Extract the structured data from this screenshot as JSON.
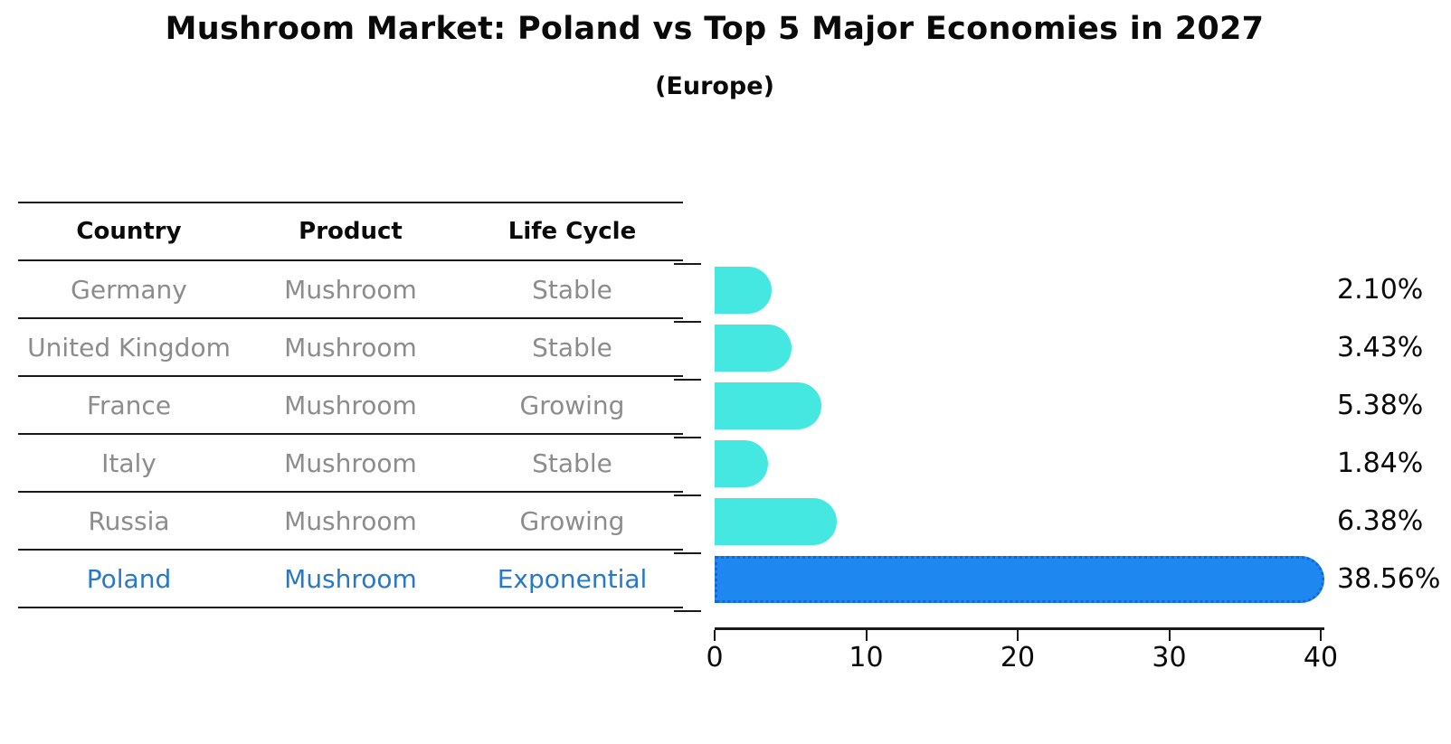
{
  "title": "Mushroom Market: Poland vs Top 5 Major Economies in 2027",
  "subtitle": "(Europe)",
  "table": {
    "headers": [
      "Country",
      "Product",
      "Life Cycle"
    ],
    "rows": [
      {
        "country": "Germany",
        "product": "Mushroom",
        "life_cycle": "Stable",
        "highlight": false
      },
      {
        "country": "United Kingdom",
        "product": "Mushroom",
        "life_cycle": "Stable",
        "highlight": false
      },
      {
        "country": "France",
        "product": "Mushroom",
        "life_cycle": "Growing",
        "highlight": false
      },
      {
        "country": "Italy",
        "product": "Mushroom",
        "life_cycle": "Stable",
        "highlight": false
      },
      {
        "country": "Russia",
        "product": "Mushroom",
        "life_cycle": "Growing",
        "highlight": false
      },
      {
        "country": "Poland",
        "product": "Mushroom",
        "life_cycle": "Exponential",
        "highlight": true
      }
    ]
  },
  "chart_data": {
    "type": "bar",
    "orientation": "horizontal",
    "title": "Mushroom Market: Poland vs Top 5 Major Economies in 2027",
    "subtitle": "(Europe)",
    "categories": [
      "Germany",
      "United Kingdom",
      "France",
      "Italy",
      "Russia",
      "Poland"
    ],
    "values": [
      2.1,
      3.43,
      5.38,
      1.84,
      6.38,
      38.56
    ],
    "value_labels": [
      "2.10%",
      "3.43%",
      "5.38%",
      "1.84%",
      "6.38%",
      "38.56%"
    ],
    "highlight_index": 5,
    "xlim": [
      0,
      40
    ],
    "x_ticks": [
      0,
      10,
      20,
      30,
      40
    ],
    "grid": false,
    "legend": "none",
    "bar_color": "#45e8e1",
    "highlight_bar_color": "#1e87f0",
    "highlight_text_color": "#2878c8"
  }
}
